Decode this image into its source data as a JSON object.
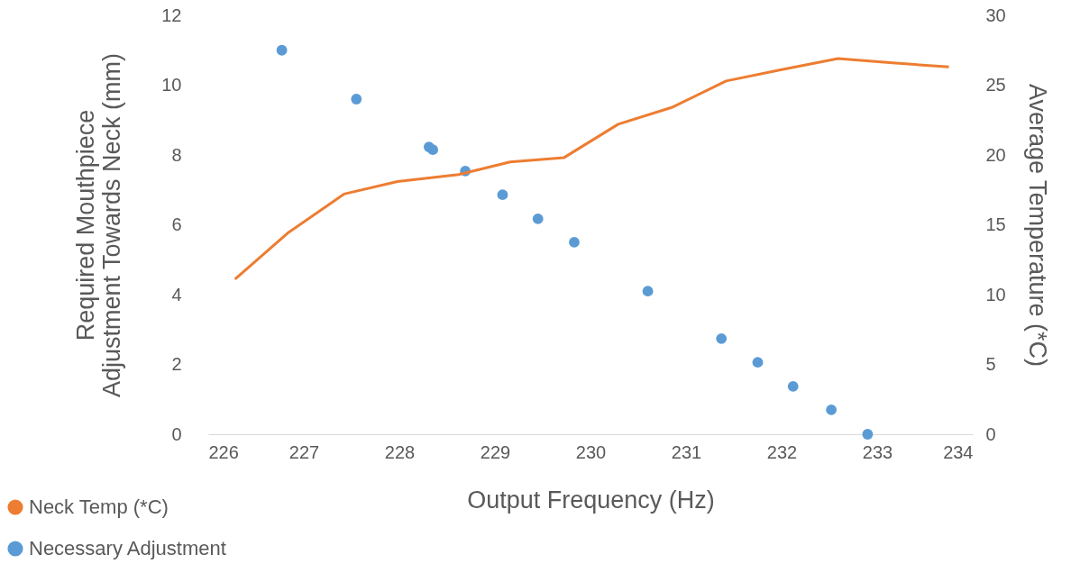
{
  "chart_data": {
    "type": "line",
    "xlabel": "Output Frequency (Hz)",
    "ylabel": "Required Mouthpiece Adjustment Towards Neck (mm)",
    "y2label": "Average Temperature (*C)",
    "xlim": [
      226,
      234
    ],
    "xticks": [
      226,
      227,
      228,
      229,
      230,
      231,
      232,
      233,
      234
    ],
    "ylim": [
      0,
      12
    ],
    "yticks": [
      0,
      2,
      4,
      6,
      8,
      10,
      12
    ],
    "y2lim": [
      0,
      30
    ],
    "y2ticks": [
      0,
      5,
      10,
      15,
      20,
      25,
      30
    ],
    "grid": false,
    "legend": "bottom left",
    "series": [
      {
        "name": "Neck Temp (*C)",
        "axis": "y2",
        "color": "#ed7d31",
        "marker": "none",
        "line_style": "solid",
        "x": [
          226.28,
          226.83,
          227.42,
          227.98,
          228.62,
          229.16,
          229.72,
          230.29,
          230.85,
          231.42,
          231.99,
          232.59,
          233.16,
          233.75
        ],
        "values": [
          11.1,
          14.4,
          17.2,
          18.1,
          18.6,
          19.5,
          19.8,
          22.2,
          23.4,
          25.3,
          26.1,
          26.9,
          26.6,
          26.3
        ]
      },
      {
        "name": "Necessary Adjustment",
        "type": "scatter",
        "color": "#5b9bd5",
        "marker": "circle",
        "x": [
          226.77,
          227.55,
          228.31,
          228.35,
          228.69,
          229.08,
          229.45,
          229.83,
          230.6,
          231.37,
          231.75,
          232.12,
          232.52,
          232.9
        ],
        "values": [
          11.0,
          9.6,
          8.23,
          8.15,
          7.54,
          6.86,
          6.17,
          5.5,
          4.1,
          2.74,
          2.06,
          1.37,
          0.7,
          0
        ]
      }
    ]
  }
}
